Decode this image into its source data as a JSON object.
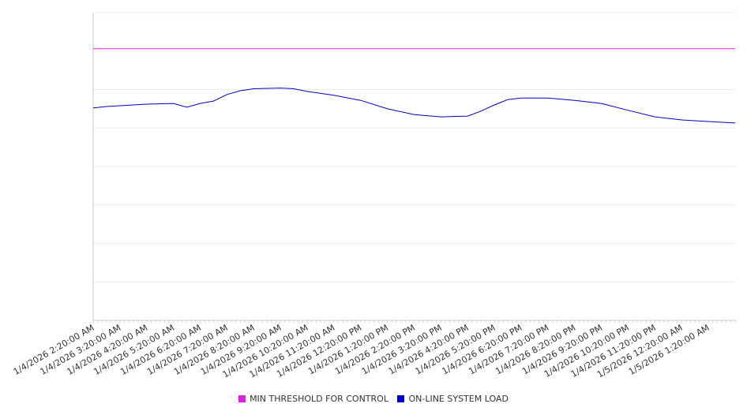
{
  "chart_data": {
    "type": "line",
    "title": "",
    "xlabel": "",
    "ylabel": "",
    "ylim": [
      0,
      8
    ],
    "grid": true,
    "legend_placement": "bottom",
    "x_unit": "hours since 1/4/2026 2:20:00 AM",
    "xlim": [
      0,
      24
    ],
    "tick_labels": [
      "1/4/2026 2:20:00 AM",
      "1/4/2026 3:20:00 AM",
      "1/4/2026 4:20:00 AM",
      "1/4/2026 5:20:00 AM",
      "1/4/2026 6:20:00 AM",
      "1/4/2026 7:20:00 AM",
      "1/4/2026 8:20:00 AM",
      "1/4/2026 9:20:00 AM",
      "1/4/2026 10:20:00 AM",
      "1/4/2026 11:20:00 AM",
      "1/4/2026 12:20:00 PM",
      "1/4/2026 1:20:00 PM",
      "1/4/2026 2:20:00 PM",
      "1/4/2026 3:20:00 PM",
      "1/4/2026 4:20:00 PM",
      "1/4/2026 5:20:00 PM",
      "1/4/2026 6:20:00 PM",
      "1/4/2026 7:20:00 PM",
      "1/4/2026 8:20:00 PM",
      "1/4/2026 9:20:00 PM",
      "1/4/2026 10:20:00 PM",
      "1/4/2026 11:20:00 PM",
      "1/5/2026 12:20:00 AM",
      "1/5/2026 1:20:00 AM"
    ],
    "series": [
      {
        "name": "MIN THRESHOLD FOR CONTROL",
        "color": "#e020e0",
        "x": [
          0,
          24
        ],
        "y": [
          7.06,
          7.06
        ]
      },
      {
        "name": "ON-LINE SYSTEM LOAD",
        "color": "#0000cc",
        "x": [
          0,
          0.5,
          1,
          2,
          3,
          3.5,
          4,
          4.5,
          5,
          5.5,
          6,
          7,
          7.5,
          8,
          9,
          10,
          11,
          12,
          13,
          14,
          14.5,
          15,
          15.5,
          16,
          17,
          18,
          19,
          20,
          21,
          22,
          23,
          24
        ],
        "y": [
          5.52,
          5.56,
          5.58,
          5.62,
          5.64,
          5.54,
          5.64,
          5.7,
          5.87,
          5.97,
          6.02,
          6.04,
          6.02,
          5.95,
          5.85,
          5.72,
          5.5,
          5.35,
          5.29,
          5.31,
          5.44,
          5.6,
          5.74,
          5.78,
          5.78,
          5.72,
          5.64,
          5.46,
          5.29,
          5.21,
          5.17,
          5.13
        ]
      }
    ]
  }
}
